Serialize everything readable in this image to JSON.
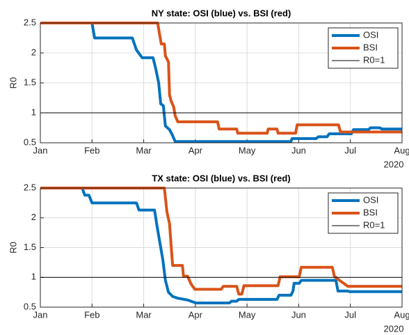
{
  "chart_data": [
    {
      "type": "line",
      "title": "NY state: OSI (blue) vs. BSI (red)",
      "ylabel": "R0",
      "x_secondary_label": "2020",
      "xlim": [
        1,
        8
      ],
      "xticks": [
        {
          "value": 1,
          "label": "Jan"
        },
        {
          "value": 2,
          "label": "Feb"
        },
        {
          "value": 3,
          "label": "Mar"
        },
        {
          "value": 4,
          "label": "Apr"
        },
        {
          "value": 5,
          "label": "May"
        },
        {
          "value": 6,
          "label": "Jun"
        },
        {
          "value": 7,
          "label": "Jul"
        },
        {
          "value": 8,
          "label": "Aug"
        }
      ],
      "ylim": [
        0.5,
        2.5
      ],
      "yticks": [
        0.5,
        1,
        1.5,
        2,
        2.5
      ],
      "grid": true,
      "legend": "upper right",
      "series": [
        {
          "name": "OSI",
          "color": "#0072bd",
          "width": 4,
          "x": [
            1.0,
            2.0,
            2.05,
            2.78,
            2.86,
            2.97,
            3.18,
            3.23,
            3.29,
            3.33,
            3.38,
            3.42,
            3.5,
            3.56,
            3.61,
            5.85,
            5.87,
            6.34,
            6.38,
            6.55,
            6.59,
            7.02,
            7.06,
            7.35,
            7.39,
            7.57,
            7.61,
            8.0
          ],
          "values": [
            2.5,
            2.5,
            2.25,
            2.25,
            2.05,
            1.92,
            1.92,
            1.75,
            1.5,
            1.15,
            1.12,
            0.78,
            0.72,
            0.62,
            0.52,
            0.52,
            0.57,
            0.57,
            0.6,
            0.6,
            0.65,
            0.65,
            0.72,
            0.72,
            0.75,
            0.75,
            0.73,
            0.73
          ]
        },
        {
          "name": "BSI",
          "color": "#d95319",
          "width": 4,
          "x": [
            1.0,
            3.27,
            3.3,
            3.34,
            3.4,
            3.42,
            3.48,
            3.5,
            3.53,
            3.58,
            3.61,
            3.66,
            4.43,
            4.46,
            4.8,
            4.82,
            5.39,
            5.41,
            5.58,
            5.6,
            5.94,
            5.97,
            6.77,
            6.81,
            8.0
          ],
          "values": [
            2.5,
            2.5,
            2.35,
            2.15,
            2.15,
            1.95,
            1.85,
            1.3,
            1.2,
            1.1,
            0.95,
            0.85,
            0.85,
            0.73,
            0.73,
            0.66,
            0.66,
            0.73,
            0.73,
            0.66,
            0.66,
            0.8,
            0.8,
            0.68,
            0.68
          ]
        },
        {
          "name": "R0=1",
          "color": "#000000",
          "width": 1,
          "x": [
            1,
            8
          ],
          "values": [
            1,
            1
          ]
        }
      ]
    },
    {
      "type": "line",
      "title": "TX state: OSI (blue) vs. BSI (red)",
      "ylabel": "R0",
      "x_secondary_label": "2020",
      "xlim": [
        1,
        8
      ],
      "xticks": [
        {
          "value": 1,
          "label": "Jan"
        },
        {
          "value": 2,
          "label": "Feb"
        },
        {
          "value": 3,
          "label": "Mar"
        },
        {
          "value": 4,
          "label": "Apr"
        },
        {
          "value": 5,
          "label": "May"
        },
        {
          "value": 6,
          "label": "Jun"
        },
        {
          "value": 7,
          "label": "Jul"
        },
        {
          "value": 8,
          "label": "Aug"
        }
      ],
      "ylim": [
        0.5,
        2.5
      ],
      "yticks": [
        0.5,
        1,
        1.5,
        2,
        2.5
      ],
      "grid": true,
      "legend": "upper right",
      "series": [
        {
          "name": "OSI",
          "color": "#0072bd",
          "width": 4,
          "x": [
            1.0,
            1.81,
            1.86,
            1.94,
            2.0,
            2.86,
            2.91,
            3.21,
            3.26,
            3.31,
            3.37,
            3.42,
            3.48,
            3.56,
            3.66,
            3.85,
            4.01,
            4.66,
            4.7,
            4.8,
            4.84,
            5.58,
            5.62,
            5.85,
            5.89,
            5.91,
            6.01,
            6.05,
            6.72,
            6.76,
            6.95,
            6.99,
            8.0
          ],
          "values": [
            2.5,
            2.5,
            2.38,
            2.38,
            2.25,
            2.25,
            2.13,
            2.13,
            1.85,
            1.6,
            1.3,
            0.95,
            0.75,
            0.68,
            0.65,
            0.62,
            0.57,
            0.57,
            0.6,
            0.6,
            0.63,
            0.63,
            0.7,
            0.7,
            0.77,
            0.9,
            0.9,
            0.95,
            0.95,
            0.77,
            0.77,
            0.76,
            0.76
          ]
        },
        {
          "name": "BSI",
          "color": "#d95319",
          "width": 4,
          "x": [
            1.0,
            3.4,
            3.45,
            3.5,
            3.56,
            3.75,
            3.77,
            3.85,
            3.91,
            3.99,
            4.5,
            4.54,
            4.8,
            4.84,
            4.9,
            4.94,
            5.6,
            5.64,
            6.01,
            6.05,
            6.65,
            6.69,
            6.79,
            6.87,
            6.95,
            8.0
          ],
          "values": [
            2.5,
            2.5,
            2.1,
            1.9,
            1.2,
            1.2,
            1.02,
            1.02,
            0.9,
            0.8,
            0.8,
            0.85,
            0.85,
            0.72,
            0.72,
            0.86,
            0.86,
            1.01,
            1.01,
            1.17,
            1.17,
            1.02,
            0.95,
            0.9,
            0.85,
            0.85
          ]
        },
        {
          "name": "R0=1",
          "color": "#000000",
          "width": 1,
          "x": [
            1,
            8
          ],
          "values": [
            1,
            1
          ]
        }
      ]
    }
  ]
}
